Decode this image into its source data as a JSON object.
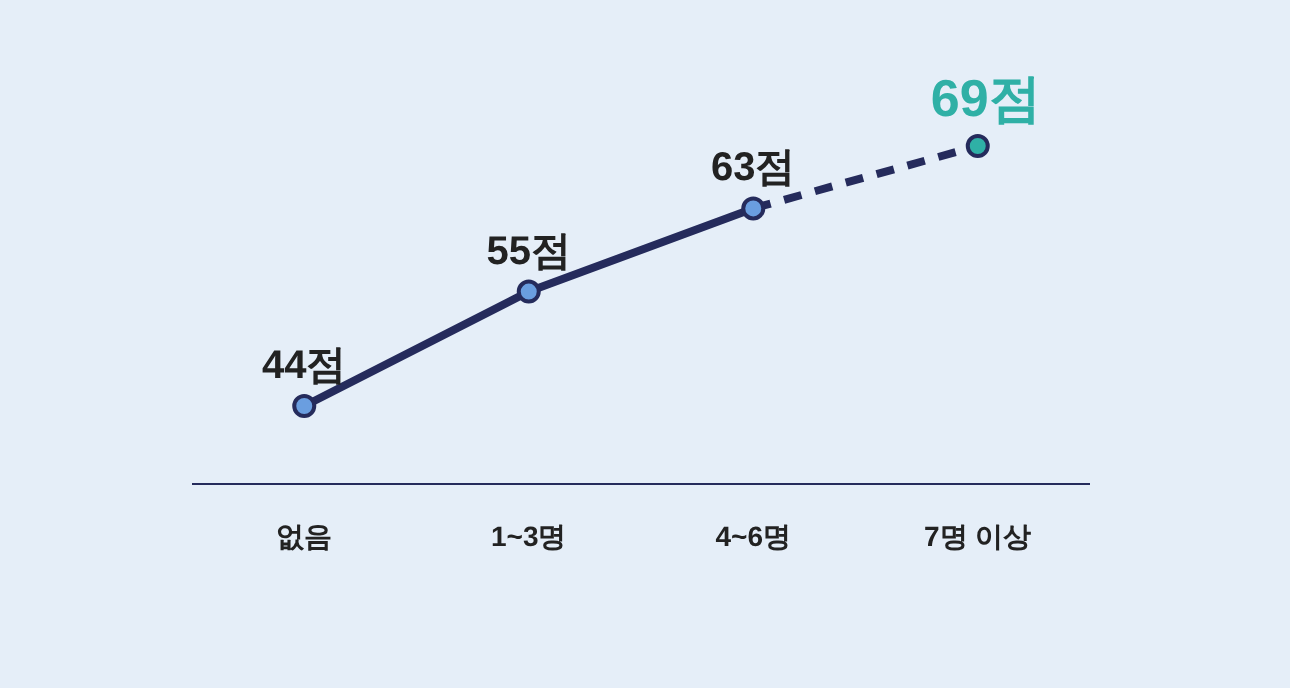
{
  "chart_data": {
    "type": "line",
    "categories": [
      "없음",
      "1~3명",
      "4~6명",
      "7명 이상"
    ],
    "tick_labels": "x",
    "marker": "circle",
    "series": [
      {
        "color": "#252b5c",
        "line_style": "solid",
        "values": [
          44,
          55,
          63,
          null
        ],
        "colors": [
          "#6a9ee0",
          "#6a9ee0",
          "#6a9ee0",
          null
        ],
        "value_labels": [
          "44점",
          "55점",
          "63점",
          null
        ]
      },
      {
        "color": "#252b5c",
        "line_style": "dashed",
        "values": [
          null,
          null,
          63,
          69
        ],
        "colors": [
          null,
          null,
          null,
          "#2fb0a6"
        ],
        "value_labels": [
          null,
          null,
          null,
          "69점"
        ]
      }
    ]
  }
}
